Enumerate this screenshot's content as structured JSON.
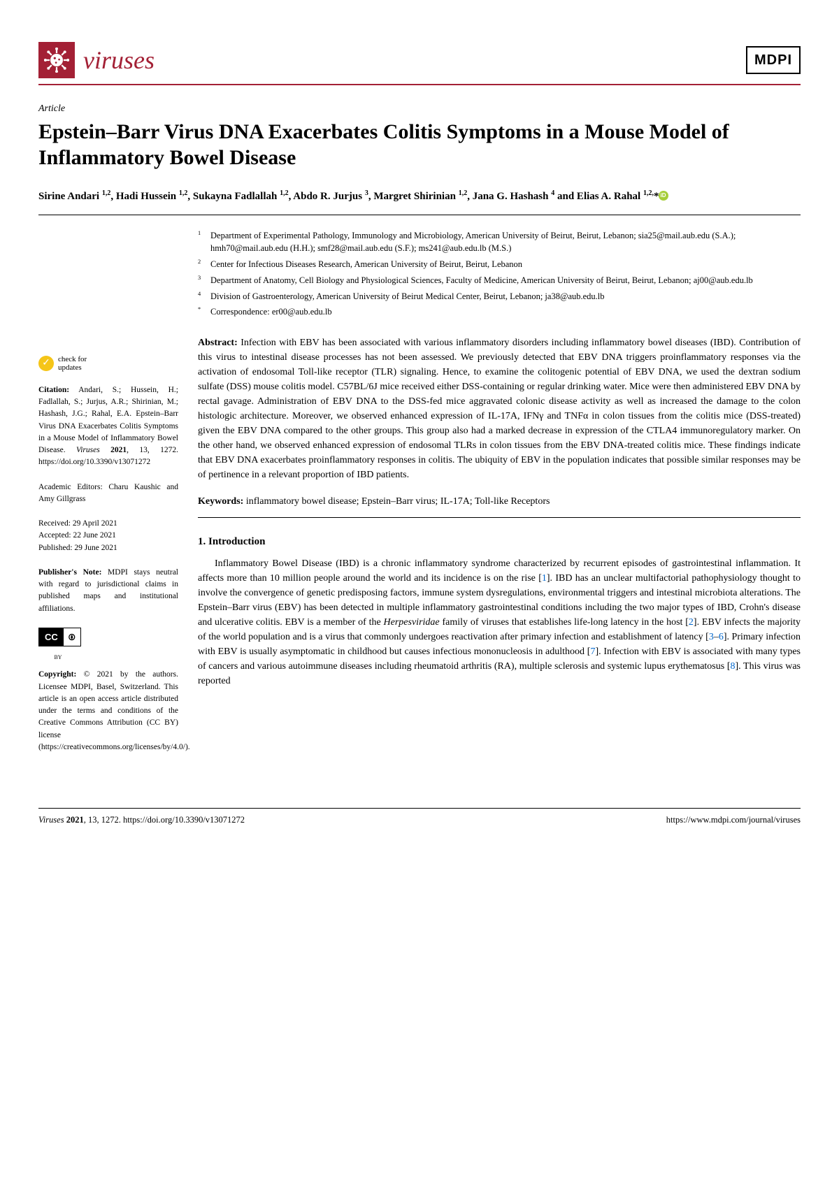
{
  "colors": {
    "journal_accent": "#a32035",
    "orcid_green": "#a6ce39",
    "check_yellow": "#f5c518",
    "ref_link": "#0066cc"
  },
  "header": {
    "journal_name": "viruses",
    "publisher_logo": "MDPI"
  },
  "article": {
    "type": "Article",
    "title": "Epstein–Barr Virus DNA Exacerbates Colitis Symptoms in a Mouse Model of Inflammatory Bowel Disease"
  },
  "authors_html": "Sirine Andari <sup>1,2</sup>, Hadi Hussein <sup>1,2</sup>, Sukayna Fadlallah <sup>1,2</sup>, Abdo R. Jurjus <sup>3</sup>, Margret Shirinian <sup>1,2</sup>, Jana G. Hashash <sup>4</sup> and Elias A. Rahal <sup>1,2,</sup>*",
  "affiliations": [
    {
      "num": "1",
      "text": "Department of Experimental Pathology, Immunology and Microbiology, American University of Beirut, Beirut, Lebanon; sia25@mail.aub.edu (S.A.); hmh70@mail.aub.edu (H.H.); smf28@mail.aub.edu (S.F.); ms241@aub.edu.lb (M.S.)"
    },
    {
      "num": "2",
      "text": "Center for Infectious Diseases Research, American University of Beirut, Beirut, Lebanon"
    },
    {
      "num": "3",
      "text": "Department of Anatomy, Cell Biology and Physiological Sciences, Faculty of Medicine, American University of Beirut, Beirut, Lebanon; aj00@aub.edu.lb"
    },
    {
      "num": "4",
      "text": "Division of Gastroenterology, American University of Beirut Medical Center, Beirut, Lebanon; ja38@aub.edu.lb"
    },
    {
      "num": "*",
      "text": "Correspondence: er00@aub.edu.lb"
    }
  ],
  "abstract": {
    "label": "Abstract:",
    "text": "Infection with EBV has been associated with various inflammatory disorders including inflammatory bowel diseases (IBD). Contribution of this virus to intestinal disease processes has not been assessed. We previously detected that EBV DNA triggers proinflammatory responses via the activation of endosomal Toll-like receptor (TLR) signaling. Hence, to examine the colitogenic potential of EBV DNA, we used the dextran sodium sulfate (DSS) mouse colitis model. C57BL/6J mice received either DSS-containing or regular drinking water. Mice were then administered EBV DNA by rectal gavage. Administration of EBV DNA to the DSS-fed mice aggravated colonic disease activity as well as increased the damage to the colon histologic architecture. Moreover, we observed enhanced expression of IL-17A, IFNγ and TNFα in colon tissues from the colitis mice (DSS-treated) given the EBV DNA compared to the other groups. This group also had a marked decrease in expression of the CTLA4 immunoregulatory marker. On the other hand, we observed enhanced expression of endosomal TLRs in colon tissues from the EBV DNA-treated colitis mice. These findings indicate that EBV DNA exacerbates proinflammatory responses in colitis. The ubiquity of EBV in the population indicates that possible similar responses may be of pertinence in a relevant proportion of IBD patients."
  },
  "keywords": {
    "label": "Keywords:",
    "text": "inflammatory bowel disease; Epstein–Barr virus; IL-17A; Toll-like Receptors"
  },
  "section": {
    "title": "1. Introduction",
    "body_pre": "Inflammatory Bowel Disease (IBD) is a chronic inflammatory syndrome characterized by recurrent episodes of gastrointestinal inflammation. It affects more than 10 million people around the world and its incidence is on the rise [",
    "ref1": "1",
    "body_2": "]. IBD has an unclear multifactorial pathophysiology thought to involve the convergence of genetic predisposing factors, immune system dysregulations, environmental triggers and intestinal microbiota alterations. The Epstein–Barr virus (EBV) has been detected in multiple inflammatory gastrointestinal conditions including the two major types of IBD, Crohn's disease and ulcerative colitis. EBV is a member of the ",
    "body_herpes": "Herpesviridae",
    "body_3": " family of viruses that establishes life-long latency in the host [",
    "ref2": "2",
    "body_4": "]. EBV infects the majority of the world population and is a virus that commonly undergoes reactivation after primary infection and establishment of latency [",
    "ref3": "3",
    "ref_dash": "–",
    "ref6": "6",
    "body_5": "]. Primary infection with EBV is usually asymptomatic in childhood but causes infectious mononucleosis in adulthood [",
    "ref7": "7",
    "body_6": "]. Infection with EBV is associated with many types of cancers and various autoimmune diseases including rheumatoid arthritis (RA), multiple sclerosis and systemic lupus erythematosus [",
    "ref8": "8",
    "body_7": "]. This virus was reported"
  },
  "sidebar": {
    "check_line1": "check for",
    "check_line2": "updates",
    "citation_label": "Citation:",
    "citation_text": " Andari, S.; Hussein, H.; Fadlallah, S.; Jurjus, A.R.; Shirinian, M.; Hashash, J.G.; Rahal, E.A. Epstein–Barr Virus DNA Exacerbates Colitis Symptoms in a Mouse Model of Inflammatory Bowel Disease. ",
    "citation_journal": "Viruses",
    "citation_year": " 2021",
    "citation_rest": ", 13, 1272. https://doi.org/10.3390/v13071272",
    "editors_label": "Academic Editors: ",
    "editors": "Charu Kaushic and Amy Gillgrass",
    "received": "Received: 29 April 2021",
    "accepted": "Accepted: 22 June 2021",
    "published": "Published: 29 June 2021",
    "pubnote_label": "Publisher's Note:",
    "pubnote_text": " MDPI stays neutral with regard to jurisdictional claims in published maps and institutional affiliations.",
    "cc_left": "cc",
    "cc_right": "①",
    "cc_by": "BY",
    "copyright_label": "Copyright:",
    "copyright_text": " © 2021 by the authors. Licensee MDPI, Basel, Switzerland. This article is an open access article distributed under the terms and conditions of the Creative Commons Attribution (CC BY) license (https://creativecommons.org/licenses/by/4.0/)."
  },
  "footer": {
    "left_journal": "Viruses",
    "left_year": " 2021",
    "left_rest": ", 13, 1272. https://doi.org/10.3390/v13071272",
    "right": "https://www.mdpi.com/journal/viruses"
  }
}
